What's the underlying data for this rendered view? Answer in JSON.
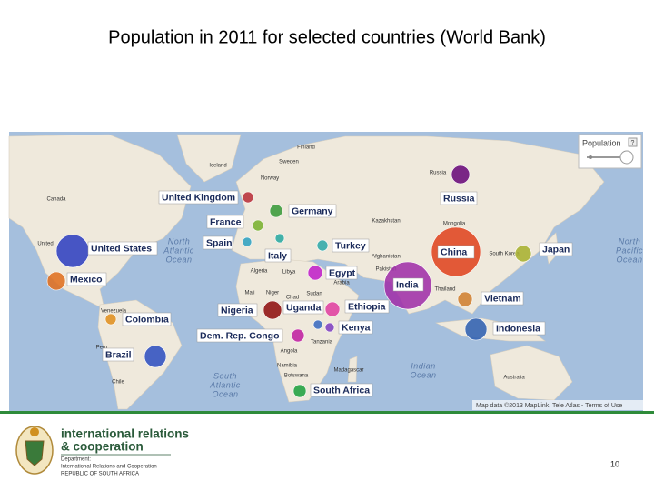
{
  "title": "Population  in 2011 for selected countries (World Bank)",
  "map": {
    "legend_title": "Population",
    "legend_help": "?",
    "countries": [
      {
        "name": "United Kingdom",
        "color": "#b8303a"
      },
      {
        "name": "Germany",
        "color": "#3a9a3a"
      },
      {
        "name": "France",
        "color": "#7ab030"
      },
      {
        "name": "Russia",
        "color": "#6a0a7a"
      },
      {
        "name": "Spain",
        "color": "#30a0c0"
      },
      {
        "name": "Italy",
        "color": "#2aa8a0"
      },
      {
        "name": "Turkey",
        "color": "#30a8a8"
      },
      {
        "name": "China",
        "color": "#e04420"
      },
      {
        "name": "Japan",
        "color": "#a8b030"
      },
      {
        "name": "United States",
        "color": "#3040c0"
      },
      {
        "name": "Mexico",
        "color": "#e07020"
      },
      {
        "name": "Egypt",
        "color": "#c020c8"
      },
      {
        "name": "India",
        "color": "#a030a8"
      },
      {
        "name": "Vietnam",
        "color": "#d08030"
      },
      {
        "name": "Nigeria",
        "color": "#901010"
      },
      {
        "name": "Uganda",
        "color": "#3a6ac0"
      },
      {
        "name": "Ethiopia",
        "color": "#e040a0"
      },
      {
        "name": "Colombia",
        "color": "#e09020"
      },
      {
        "name": "Kenya",
        "color": "#8040c0"
      },
      {
        "name": "Indonesia",
        "color": "#3060b0"
      },
      {
        "name": "Dem. Rep. Congo",
        "color": "#c020a0"
      },
      {
        "name": "Brazil",
        "color": "#3050c0"
      },
      {
        "name": "South Africa",
        "color": "#20a040"
      }
    ],
    "place_names": [
      "Finland",
      "Sweden",
      "Iceland",
      "Norway",
      "Canada",
      "Russia",
      "Kazakhstan",
      "Mongolia",
      "Afghanistan",
      "Pakistan",
      "South Korea",
      "Algeria",
      "Libya",
      "Mali",
      "Niger",
      "Chad",
      "Sudan",
      "Arabia",
      "Thailand",
      "Venezuela",
      "Peru",
      "Chile",
      "Tanzania",
      "Angola",
      "Namibia",
      "Botswana",
      "Madagascar",
      "Australia",
      "United"
    ],
    "oceans": [
      [
        "North",
        "Atlantic",
        "Ocean"
      ],
      [
        "North",
        "Pacific",
        "Ocean"
      ],
      [
        "South",
        "Atlantic",
        "Ocean"
      ],
      [
        "Indian",
        "Ocean"
      ]
    ],
    "attribution": "Map data ©2013 MapLink, Tele Atlas - Terms of Use"
  },
  "footer": {
    "logo_lines": [
      "international relations",
      "& cooperation"
    ],
    "department_lines": [
      "Department:",
      "International Relations and Cooperation",
      "REPUBLIC OF SOUTH AFRICA"
    ],
    "page_number": "10"
  }
}
